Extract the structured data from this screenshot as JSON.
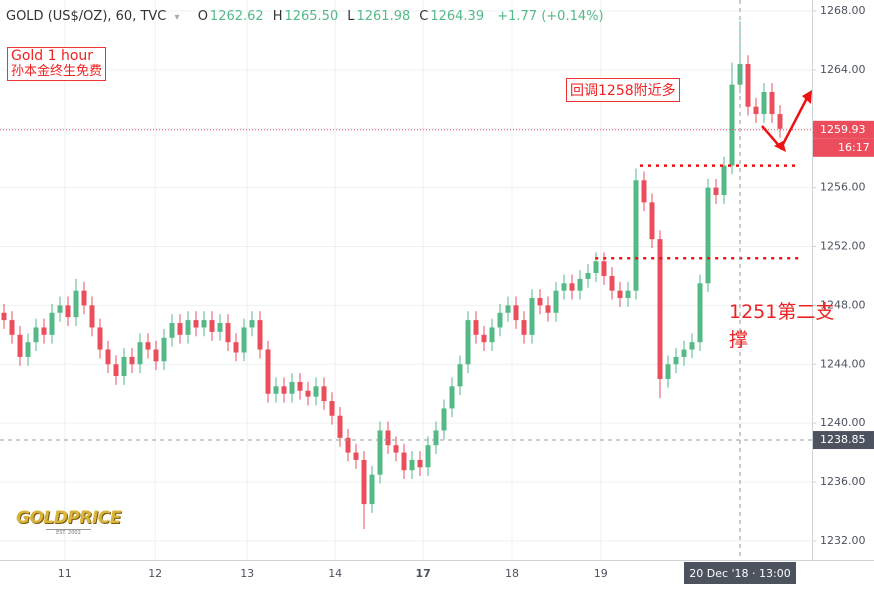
{
  "chart_data": {
    "type": "candlestick",
    "title": "GOLD (US$/OZ), 60, TVC",
    "ohlc_header": [
      {
        "label": "O",
        "value": 1262.62
      },
      {
        "label": "H",
        "value": 1265.5
      },
      {
        "label": "L",
        "value": 1261.98
      },
      {
        "label": "C",
        "value": 1264.39
      }
    ],
    "change": "+1.77 (+0.14%)",
    "up_color": "#53b987",
    "down_color": "#eb4d5c",
    "open": [
      1247.5,
      1247.0,
      1246.0,
      1244.5,
      1245.5,
      1246.5,
      1246.0,
      1247.5,
      1248.0,
      1247.2,
      1249.0,
      1248.0,
      1246.5,
      1245.0,
      1244.0,
      1243.2,
      1244.5,
      1244.0,
      1245.5,
      1245.0,
      1244.2,
      1245.8,
      1246.8,
      1246.0,
      1247.0,
      1246.5,
      1247.0,
      1246.2,
      1246.8,
      1245.5,
      1244.8,
      1246.5,
      1247.0,
      1245.0,
      1242.0,
      1242.5,
      1242.0,
      1242.8,
      1242.2,
      1241.8,
      1242.5,
      1241.5,
      1240.5,
      1239.0,
      1238.0,
      1237.5,
      1234.5,
      1236.5,
      1239.5,
      1238.5,
      1238.0,
      1236.8,
      1237.5,
      1237.0,
      1238.5,
      1239.5,
      1241.0,
      1242.5,
      1244.0,
      1247.0,
      1246.0,
      1245.5,
      1246.5,
      1247.5,
      1248.0,
      1247.0,
      1246.0,
      1248.5,
      1248.0,
      1247.5,
      1249.0,
      1249.5,
      1249.0,
      1249.8,
      1250.2,
      1251.0,
      1250.0,
      1249.0,
      1248.5,
      1249.0,
      1256.5,
      1255.0,
      1252.5,
      1243.0,
      1244.0,
      1244.5,
      1245.0,
      1245.5,
      1249.5,
      1256.0,
      1255.5,
      1257.5,
      1263.0,
      1264.4,
      1261.5,
      1261.0,
      1262.5,
      1261.0
    ],
    "high": [
      1248.1,
      1247.6,
      1246.6,
      1246.1,
      1247.1,
      1247.1,
      1248.1,
      1248.6,
      1248.6,
      1249.8,
      1249.6,
      1248.6,
      1247.1,
      1245.6,
      1244.6,
      1245.1,
      1245.1,
      1246.1,
      1246.1,
      1245.6,
      1246.4,
      1247.4,
      1247.4,
      1247.6,
      1247.6,
      1247.6,
      1247.6,
      1247.4,
      1247.4,
      1246.1,
      1247.1,
      1247.6,
      1247.6,
      1245.6,
      1243.1,
      1243.1,
      1243.4,
      1243.4,
      1242.8,
      1243.1,
      1243.1,
      1242.1,
      1241.1,
      1239.6,
      1238.6,
      1238.1,
      1237.1,
      1240.1,
      1240.1,
      1239.1,
      1238.6,
      1238.1,
      1238.1,
      1239.1,
      1240.1,
      1241.6,
      1243.1,
      1244.6,
      1247.6,
      1247.6,
      1246.6,
      1247.1,
      1248.1,
      1248.6,
      1248.6,
      1247.6,
      1249.1,
      1249.1,
      1248.6,
      1249.6,
      1250.1,
      1250.1,
      1250.4,
      1250.8,
      1251.6,
      1251.6,
      1250.6,
      1249.6,
      1249.6,
      1257.3,
      1257.1,
      1255.6,
      1253.1,
      1244.6,
      1245.1,
      1245.6,
      1246.1,
      1250.1,
      1256.6,
      1256.6,
      1258.1,
      1264.5,
      1267.3,
      1265.0,
      1262.1,
      1263.1,
      1263.1,
      1261.6
    ],
    "low": [
      1246.4,
      1245.4,
      1243.9,
      1243.9,
      1244.9,
      1245.4,
      1245.4,
      1246.9,
      1246.6,
      1246.6,
      1247.4,
      1245.9,
      1244.4,
      1243.4,
      1242.6,
      1242.6,
      1243.4,
      1243.4,
      1244.4,
      1243.6,
      1243.6,
      1245.2,
      1245.4,
      1245.4,
      1245.9,
      1245.9,
      1245.6,
      1245.6,
      1244.9,
      1244.2,
      1244.2,
      1245.9,
      1244.4,
      1241.4,
      1241.4,
      1241.4,
      1241.4,
      1241.6,
      1241.2,
      1241.2,
      1240.9,
      1239.9,
      1238.4,
      1237.4,
      1236.9,
      1232.8,
      1233.9,
      1235.9,
      1237.9,
      1237.4,
      1236.2,
      1236.2,
      1236.4,
      1236.4,
      1237.9,
      1238.9,
      1240.4,
      1241.9,
      1243.4,
      1245.4,
      1244.9,
      1244.9,
      1245.9,
      1246.9,
      1246.4,
      1245.4,
      1245.4,
      1247.4,
      1246.9,
      1246.9,
      1248.4,
      1248.4,
      1248.4,
      1249.2,
      1249.6,
      1249.4,
      1248.4,
      1247.9,
      1247.9,
      1248.4,
      1254.4,
      1251.9,
      1241.7,
      1242.4,
      1243.4,
      1243.9,
      1244.4,
      1244.9,
      1248.9,
      1254.9,
      1254.9,
      1256.9,
      1262.4,
      1260.9,
      1260.4,
      1260.4,
      1260.4,
      1259.4
    ],
    "close": [
      1247.0,
      1246.0,
      1244.5,
      1245.5,
      1246.5,
      1246.0,
      1247.5,
      1248.0,
      1247.2,
      1249.0,
      1248.0,
      1246.5,
      1245.0,
      1244.0,
      1243.2,
      1244.5,
      1244.0,
      1245.5,
      1245.0,
      1244.2,
      1245.8,
      1246.8,
      1246.0,
      1247.0,
      1246.5,
      1247.0,
      1246.2,
      1246.8,
      1245.5,
      1244.8,
      1246.5,
      1247.0,
      1245.0,
      1242.0,
      1242.5,
      1242.0,
      1242.8,
      1242.2,
      1241.8,
      1242.5,
      1241.5,
      1240.5,
      1239.0,
      1238.0,
      1237.5,
      1234.5,
      1236.5,
      1239.5,
      1238.5,
      1238.0,
      1236.8,
      1237.5,
      1237.0,
      1238.5,
      1239.5,
      1241.0,
      1242.5,
      1244.0,
      1247.0,
      1246.0,
      1245.5,
      1246.5,
      1247.5,
      1248.0,
      1247.0,
      1246.0,
      1248.5,
      1248.0,
      1247.5,
      1249.0,
      1249.5,
      1249.0,
      1249.8,
      1250.2,
      1251.0,
      1250.0,
      1249.0,
      1248.5,
      1249.0,
      1256.5,
      1255.0,
      1252.5,
      1243.0,
      1244.0,
      1244.5,
      1245.0,
      1245.5,
      1249.5,
      1256.0,
      1255.5,
      1257.5,
      1263.0,
      1264.4,
      1261.5,
      1261.0,
      1262.5,
      1261.0,
      1260.0
    ],
    "ylim": [
      1230.7,
      1268.75
    ],
    "yticks": [
      {
        "value": 1232,
        "label": "1232.00"
      },
      {
        "value": 1236,
        "label": "1236.00"
      },
      {
        "value": 1240,
        "label": "1240.00"
      },
      {
        "value": 1244,
        "label": "1244.00"
      },
      {
        "value": 1248,
        "label": "1248.00"
      },
      {
        "value": 1252,
        "label": "1252.00"
      },
      {
        "value": 1256,
        "label": "1256.00"
      },
      {
        "value": 1260,
        "label": "1260.00"
      },
      {
        "value": 1264,
        "label": "1264.00"
      },
      {
        "value": 1268,
        "label": "1268.00"
      }
    ],
    "xlim": [
      -0.5,
      101
    ],
    "xticks": [
      {
        "value": 7.6,
        "label": "11"
      },
      {
        "value": 18.9,
        "label": "12"
      },
      {
        "value": 30.4,
        "label": "13"
      },
      {
        "value": 41.4,
        "label": "14"
      },
      {
        "value": 52.4,
        "label": "17",
        "bold": true
      },
      {
        "value": 63.5,
        "label": "18"
      },
      {
        "value": 74.6,
        "label": "19"
      }
    ],
    "grid": true,
    "last_price": {
      "value": 1259.93,
      "label": "1259.93",
      "countdown": "16:17"
    },
    "crosshair": {
      "x": 92,
      "x_label": "20 Dec '18 · 13:00",
      "y": 1238.85,
      "y_label": "1238.85"
    },
    "levels": [
      {
        "value": 1257.5,
        "from": 79.5,
        "to": 99.5
      },
      {
        "value": 1251.2,
        "from": 73.9,
        "to": 99.5
      }
    ],
    "annotations": {
      "box1": [
        "Gold 1 hour",
        "孙本金终生免费"
      ],
      "box2": "回调1258附近多",
      "support": "1251第二支撑"
    },
    "logo": {
      "name": "GOLDPRICE",
      "sub": "EST. 2002"
    }
  }
}
